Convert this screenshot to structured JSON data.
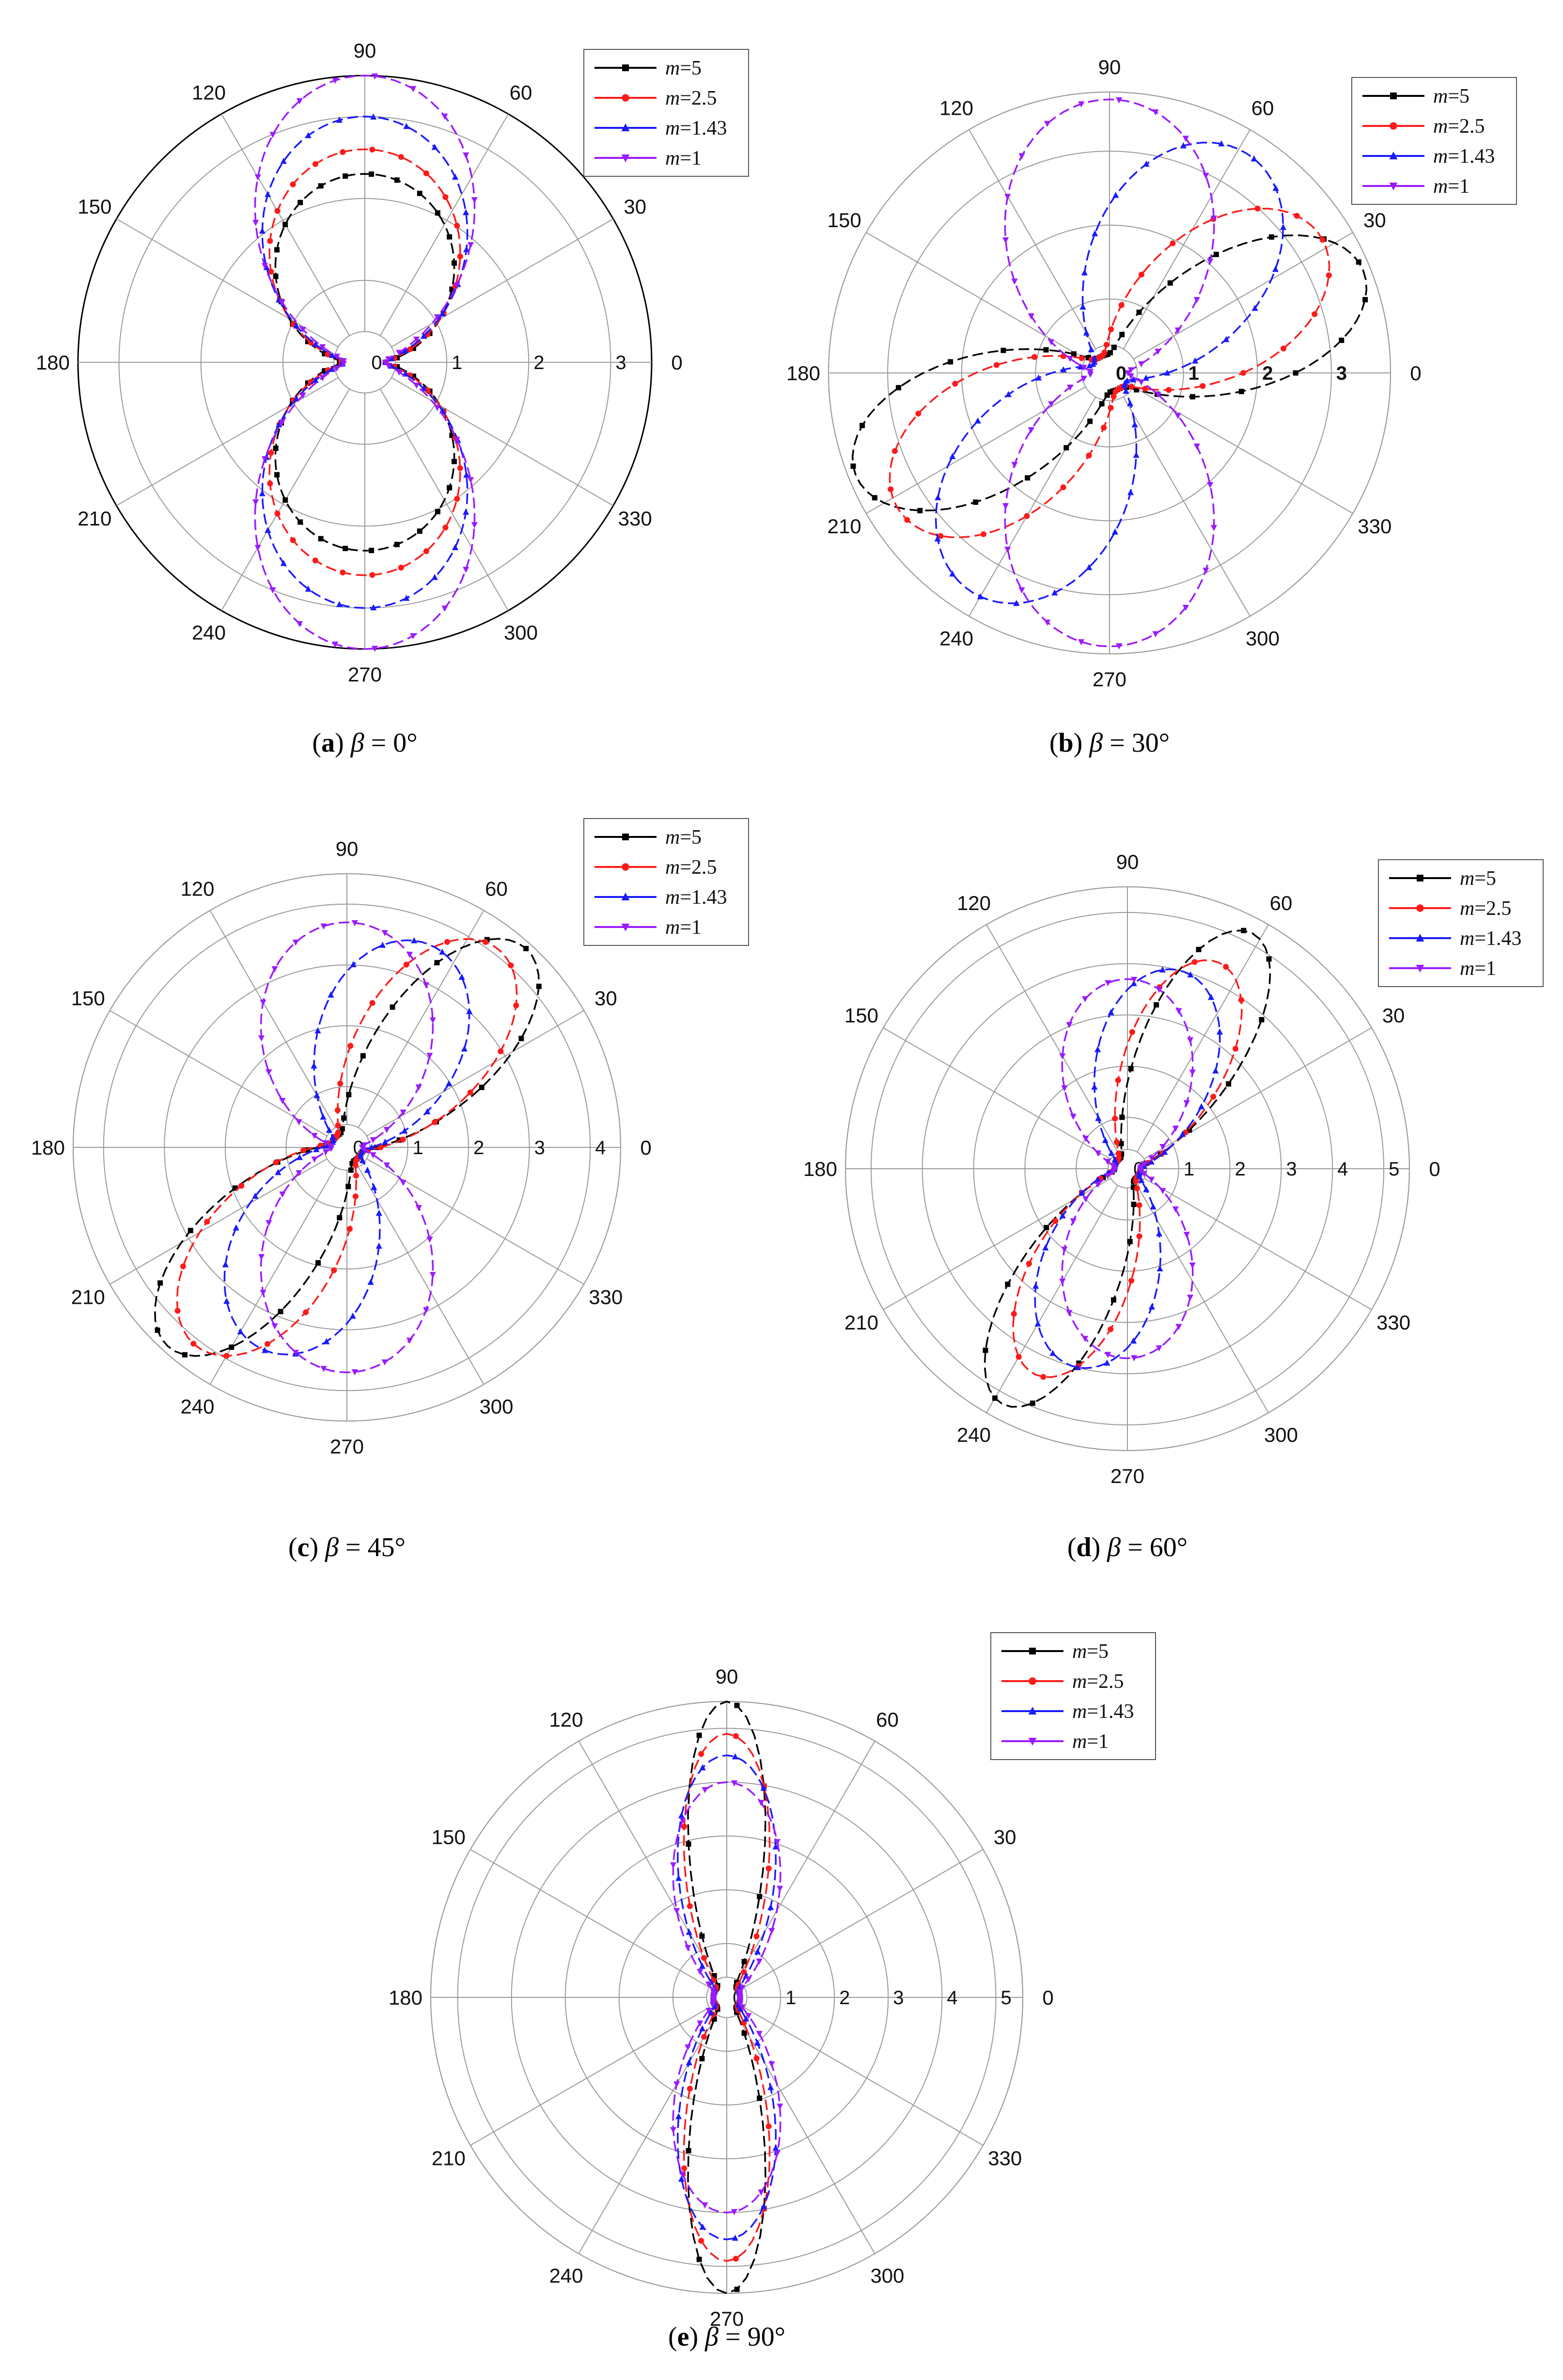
{
  "legend": {
    "var_label": "m",
    "entries": [
      {
        "name": "=5",
        "m": 5,
        "color": "#000000",
        "marker": "square"
      },
      {
        "name": "=2.5",
        "m": 2.5,
        "color": "#ff1a1a",
        "marker": "circle"
      },
      {
        "name": "=1.43",
        "m": 1.43,
        "color": "#1a1aff",
        "marker": "triangle-up"
      },
      {
        "name": "=1",
        "m": 1,
        "color": "#9b1aff",
        "marker": "triangle-down"
      }
    ]
  },
  "angle_labels": [
    "0",
    "30",
    "60",
    "90",
    "120",
    "150",
    "180",
    "210",
    "240",
    "270",
    "300",
    "330"
  ],
  "chart_data": [
    {
      "id": "a",
      "type": "polar",
      "caption": {
        "letter": "a",
        "symbol": "β",
        "value": "= 0°"
      },
      "beta_deg": 0,
      "rmax": 3.5,
      "rticks": [
        0,
        1,
        2,
        3
      ],
      "outer_circle_dark": true,
      "series": [
        {
          "m": 5,
          "peak": 2.3,
          "lobe_dir_deg": 90,
          "width": 0.75
        },
        {
          "m": 2.5,
          "peak": 2.6,
          "lobe_dir_deg": 90,
          "width": 0.65
        },
        {
          "m": 1.43,
          "peak": 3.0,
          "lobe_dir_deg": 90,
          "width": 0.55
        },
        {
          "m": 1,
          "peak": 3.5,
          "lobe_dir_deg": 90,
          "width": 0.45
        }
      ]
    },
    {
      "id": "b",
      "type": "polar",
      "caption": {
        "letter": "b",
        "symbol": "β",
        "value": "= 30°"
      },
      "beta_deg": 30,
      "rmax": 3.8,
      "rticks": [
        0,
        1,
        2,
        3
      ],
      "tick_bold": true,
      "series": [
        {
          "m": 5,
          "peak": 3.7,
          "lobe_dir_deg": 22,
          "width": 0.18
        },
        {
          "m": 2.5,
          "peak": 3.4,
          "lobe_dir_deg": 33,
          "width": 0.25
        },
        {
          "m": 1.43,
          "peak": 3.5,
          "lobe_dir_deg": 58,
          "width": 0.35
        },
        {
          "m": 1,
          "peak": 3.7,
          "lobe_dir_deg": 90,
          "width": 0.45
        }
      ]
    },
    {
      "id": "c",
      "type": "polar",
      "caption": {
        "letter": "c",
        "symbol": "β",
        "value": "= 45°"
      },
      "beta_deg": 45,
      "rmax": 4.5,
      "rticks": [
        0,
        1,
        2,
        3,
        4
      ],
      "series": [
        {
          "m": 5,
          "peak": 4.4,
          "lobe_dir_deg": 48,
          "width": 0.14
        },
        {
          "m": 2.5,
          "peak": 4.1,
          "lobe_dir_deg": 53,
          "width": 0.2
        },
        {
          "m": 1.43,
          "peak": 3.6,
          "lobe_dir_deg": 68,
          "width": 0.32
        },
        {
          "m": 1,
          "peak": 3.7,
          "lobe_dir_deg": 90,
          "width": 0.45
        }
      ]
    },
    {
      "id": "d",
      "type": "polar",
      "caption": {
        "letter": "d",
        "symbol": "β",
        "value": "= 60°"
      },
      "beta_deg": 60,
      "rmax": 5.5,
      "rticks": [
        0,
        1,
        2,
        3,
        4,
        5
      ],
      "series": [
        {
          "m": 5,
          "peak": 5.2,
          "lobe_dir_deg": 62,
          "width": 0.1
        },
        {
          "m": 2.5,
          "peak": 4.4,
          "lobe_dir_deg": 66,
          "width": 0.14
        },
        {
          "m": 1.43,
          "peak": 4.0,
          "lobe_dir_deg": 75,
          "width": 0.24
        },
        {
          "m": 1,
          "peak": 3.7,
          "lobe_dir_deg": 90,
          "width": 0.35
        }
      ]
    },
    {
      "id": "e",
      "type": "polar",
      "caption": {
        "letter": "e",
        "symbol": "β",
        "value": "= 90°"
      },
      "beta_deg": 90,
      "rmax": 5.5,
      "rticks": [
        0,
        1,
        2,
        3,
        4,
        5
      ],
      "series": [
        {
          "m": 5,
          "peak": 5.5,
          "lobe_dir_deg": 90,
          "width": 0.045
        },
        {
          "m": 2.5,
          "peak": 4.9,
          "lobe_dir_deg": 90,
          "width": 0.07
        },
        {
          "m": 1.43,
          "peak": 4.5,
          "lobe_dir_deg": 90,
          "width": 0.11
        },
        {
          "m": 1,
          "peak": 4.0,
          "lobe_dir_deg": 90,
          "width": 0.17
        }
      ]
    }
  ]
}
